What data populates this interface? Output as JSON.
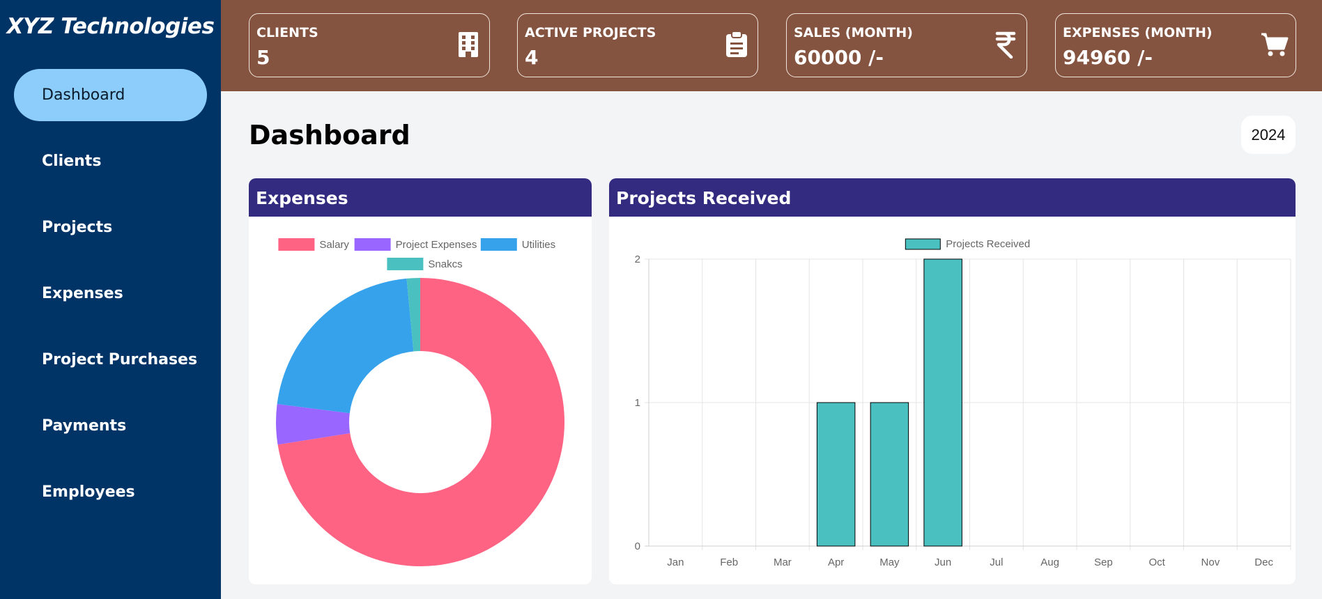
{
  "brand": "XYZ Technologies",
  "sidebar": {
    "items": [
      {
        "label": "Dashboard"
      },
      {
        "label": "Clients"
      },
      {
        "label": "Projects"
      },
      {
        "label": "Expenses"
      },
      {
        "label": "Project Purchases"
      },
      {
        "label": "Payments"
      },
      {
        "label": "Employees"
      }
    ],
    "active_index": 0
  },
  "stats": [
    {
      "label": "CLIENTS",
      "value": "5",
      "icon": "building-icon"
    },
    {
      "label": "ACTIVE PROJECTS",
      "value": "4",
      "icon": "clipboard-icon"
    },
    {
      "label": "SALES (MONTH)",
      "value": "60000 /-",
      "icon": "rupee-icon"
    },
    {
      "label": "EXPENSES (MONTH)",
      "value": "94960 /-",
      "icon": "cart-icon"
    }
  ],
  "page": {
    "title": "Dashboard",
    "year": "2024"
  },
  "colors": {
    "sidebar": "#003366",
    "topbar": "#855440",
    "panel_header": "#332b7f",
    "active_nav": "#8ccdfc"
  },
  "panels": {
    "expenses_title": "Expenses",
    "projects_title": "Projects Received"
  },
  "chart_data": [
    {
      "type": "pie",
      "subtype": "doughnut",
      "labels": [
        "Salary",
        "Project Expenses",
        "Utilities",
        "Snakcs"
      ],
      "values": [
        72.5,
        4.5,
        21.5,
        1.5
      ],
      "colors": [
        "#ff6384",
        "#9966ff",
        "#36a2eb",
        "#4bc0c0"
      ],
      "legend_position": "top"
    },
    {
      "type": "bar",
      "categories": [
        "Jan",
        "Feb",
        "Mar",
        "Apr",
        "May",
        "Jun",
        "Jul",
        "Aug",
        "Sep",
        "Oct",
        "Nov",
        "Dec"
      ],
      "series": [
        {
          "name": "Projects Received",
          "values": [
            0,
            0,
            0,
            1,
            1,
            2,
            0,
            0,
            0,
            0,
            0,
            0
          ],
          "color": "#4bc0c0"
        }
      ],
      "ylim": [
        0,
        2
      ],
      "yticks": [
        0,
        1,
        2
      ],
      "grid": true,
      "legend_position": "top"
    }
  ]
}
